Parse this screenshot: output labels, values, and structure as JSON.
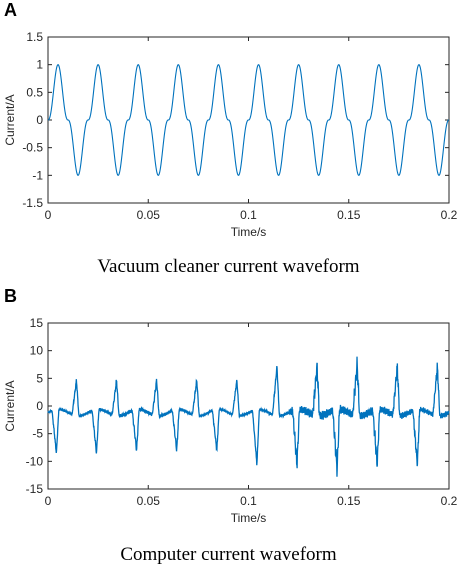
{
  "panels": [
    {
      "letter": "A",
      "caption": "Vacuum cleaner current waveform",
      "chart_data": {
        "type": "line",
        "xlabel": "Time/s",
        "ylabel": "Current/A",
        "xlim": [
          0,
          0.2
        ],
        "ylim": [
          -1.5,
          1.5
        ],
        "xticks": [
          "0",
          "0.05",
          "0.1",
          "0.15",
          "0.2"
        ],
        "yticks": [
          "1.5",
          "1",
          "0.5",
          "0",
          "-0.5",
          "-1",
          "-1.5"
        ],
        "line_color": "#0072BD",
        "waveform": "vacuum",
        "period_s": 0.02,
        "peak_A": 1.0
      }
    },
    {
      "letter": "B",
      "caption": "Computer current waveform",
      "chart_data": {
        "type": "line",
        "xlabel": "Time/s",
        "ylabel": "Current/A",
        "xlim": [
          0,
          0.2
        ],
        "ylim": [
          -15,
          15
        ],
        "xticks": [
          "0",
          "0.05",
          "0.1",
          "0.15",
          "0.2"
        ],
        "yticks": [
          "15",
          "10",
          "5",
          "0",
          "-5",
          "-10",
          "-15"
        ],
        "line_color": "#0072BD",
        "waveform": "computer",
        "period_s": 0.02,
        "pulse_peaks_A": [
          6.5,
          6.5,
          6.5,
          6.5,
          6.5,
          9.0,
          9.0,
          9.5,
          9.0
        ],
        "pulse_troughs_A": [
          -8,
          -8,
          -7.5,
          -7.5,
          -7.5,
          -10,
          -10,
          -11,
          -10
        ]
      }
    }
  ]
}
